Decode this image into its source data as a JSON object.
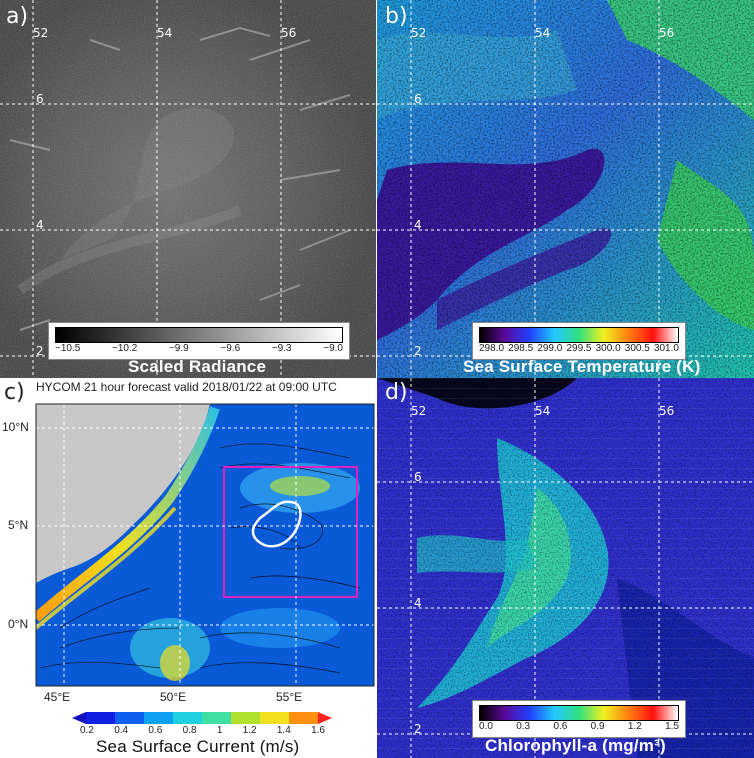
{
  "panel_a": {
    "label": "a)",
    "lon_ticks": [
      "52",
      "54",
      "56"
    ],
    "lat_ticks": [
      "6",
      "4",
      "2"
    ],
    "colorbar_ticks": [
      "−10.5",
      "−10.2",
      "−9.9",
      "−9.6",
      "−9.3",
      "−9.0"
    ],
    "caption": "Scaled Radiance"
  },
  "panel_b": {
    "label": "b)",
    "lon_ticks": [
      "52",
      "54",
      "56"
    ],
    "lat_ticks": [
      "6",
      "4",
      "2"
    ],
    "colorbar_ticks": [
      "298.0",
      "298.5",
      "299.0",
      "299.5",
      "300.0",
      "300.5",
      "301.0"
    ],
    "caption": "Sea Surface Temperature (K)"
  },
  "panel_c": {
    "label": "c)",
    "title": "HYCOM 21 hour forecast valid 2018/01/22 at 09:00 UTC",
    "lat_ticks": [
      "10°N",
      "5°N",
      "0°N"
    ],
    "lon_ticks": [
      "45°E",
      "50°E",
      "55°E"
    ],
    "colorbar_ticks": [
      "0.2",
      "0.4",
      "0.6",
      "0.8",
      "1",
      "1.2",
      "1.4",
      "1.6"
    ],
    "caption": "Sea Surface Current (m/s)"
  },
  "panel_d": {
    "label": "d)",
    "lon_ticks": [
      "52",
      "54",
      "56"
    ],
    "lat_ticks": [
      "6",
      "4",
      "2"
    ],
    "colorbar_ticks": [
      "0.0",
      "0.3",
      "0.6",
      "0.9",
      "1.2",
      "1.5"
    ],
    "caption": "Chlorophyll-a (mg/m³)"
  },
  "colors": {
    "gray_start": "#000000",
    "gray_end": "#ffffff",
    "magenta_box": "#e020c0",
    "land": "#c8c8c8"
  }
}
